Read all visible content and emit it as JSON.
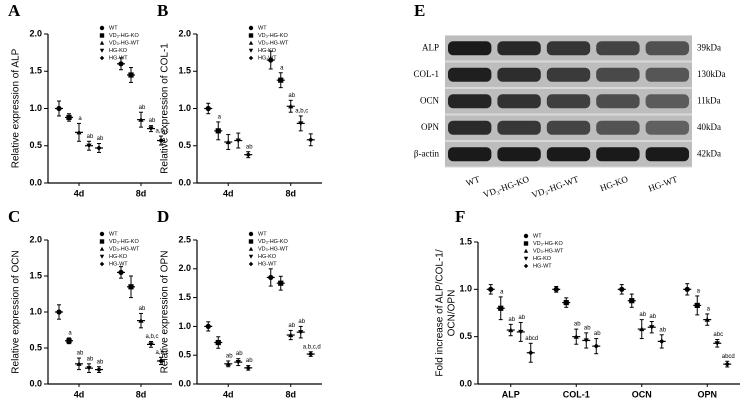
{
  "chart_data": [
    {
      "type": "dot",
      "panel": "A",
      "y_label": "Relative expression of ALP",
      "categories": [
        "4d",
        "8d"
      ],
      "ylim": [
        0,
        2
      ],
      "yticks": [
        {
          "value": 0,
          "label": "0.0"
        },
        {
          "value": 0.5,
          "label": "0.5"
        },
        {
          "value": 1,
          "label": "1.0"
        },
        {
          "value": 1.5,
          "label": "1.5"
        },
        {
          "value": 2,
          "label": "2.0"
        }
      ],
      "series": [
        {
          "name": "WT",
          "marker": "circle",
          "color": "#000000",
          "values": [
            1.0,
            1.6
          ],
          "errors": [
            0.1,
            0.08
          ],
          "labels": [
            null,
            null
          ]
        },
        {
          "name": "VD₃-HG-KO",
          "marker": "square",
          "color": "#000000",
          "values": [
            0.88,
            1.45
          ],
          "errors": [
            0.05,
            0.1
          ],
          "labels": [
            null,
            null
          ]
        },
        {
          "name": "VD₃-HG-WT",
          "marker": "triangle-up",
          "color": "#000000",
          "values": [
            0.68,
            0.85
          ],
          "errors": [
            0.12,
            0.1
          ],
          "labels": [
            "a",
            "ab"
          ]
        },
        {
          "name": "HG-KO",
          "marker": "triangle-down",
          "color": "#000000",
          "values": [
            0.5,
            0.73
          ],
          "errors": [
            0.06,
            0.04
          ],
          "labels": [
            "ab",
            "ab"
          ]
        },
        {
          "name": "HG-WT",
          "marker": "diamond",
          "color": "#000000",
          "values": [
            0.47,
            0.57
          ],
          "errors": [
            0.06,
            0.06
          ],
          "labels": [
            "ab",
            "a,b,c"
          ]
        }
      ]
    },
    {
      "type": "dot",
      "panel": "B",
      "y_label": "Relative expression of COL-1",
      "categories": [
        "4d",
        "8d"
      ],
      "ylim": [
        0,
        2
      ],
      "yticks": [
        {
          "value": 0,
          "label": "0.0"
        },
        {
          "value": 0.5,
          "label": "0.5"
        },
        {
          "value": 1,
          "label": "1.0"
        },
        {
          "value": 1.5,
          "label": "1.5"
        },
        {
          "value": 2,
          "label": "2.0"
        }
      ],
      "series": [
        {
          "name": "WT",
          "marker": "circle",
          "color": "#000000",
          "values": [
            1.0,
            1.65
          ],
          "errors": [
            0.07,
            0.12
          ],
          "labels": [
            null,
            null
          ]
        },
        {
          "name": "VD₃-HG-KO",
          "marker": "square",
          "color": "#000000",
          "values": [
            0.7,
            1.38
          ],
          "errors": [
            0.12,
            0.1
          ],
          "labels": [
            "a",
            "a"
          ]
        },
        {
          "name": "VD₃-HG-WT",
          "marker": "triangle-up",
          "color": "#000000",
          "values": [
            0.55,
            1.03
          ],
          "errors": [
            0.1,
            0.08
          ],
          "labels": [
            null,
            "ab"
          ]
        },
        {
          "name": "HG-KO",
          "marker": "triangle-down",
          "color": "#000000",
          "values": [
            0.57,
            0.8
          ],
          "errors": [
            0.1,
            0.1
          ],
          "labels": [
            null,
            "a,b,c"
          ]
        },
        {
          "name": "HG-WT",
          "marker": "diamond",
          "color": "#000000",
          "values": [
            0.38,
            0.58
          ],
          "errors": [
            0.04,
            0.08
          ],
          "labels": [
            "ab",
            null
          ]
        }
      ]
    },
    {
      "type": "dot",
      "panel": "C",
      "y_label": "Relative expression of OCN",
      "categories": [
        "4d",
        "8d"
      ],
      "ylim": [
        0,
        2
      ],
      "yticks": [
        {
          "value": 0,
          "label": "0.0"
        },
        {
          "value": 0.5,
          "label": "0.5"
        },
        {
          "value": 1,
          "label": "1.0"
        },
        {
          "value": 1.5,
          "label": "1.5"
        },
        {
          "value": 2,
          "label": "2.0"
        }
      ],
      "series": [
        {
          "name": "WT",
          "marker": "circle",
          "color": "#000000",
          "values": [
            1.0,
            1.55
          ],
          "errors": [
            0.1,
            0.08
          ],
          "labels": [
            null,
            null
          ]
        },
        {
          "name": "VD₃-HG-KO",
          "marker": "square",
          "color": "#000000",
          "values": [
            0.6,
            1.35
          ],
          "errors": [
            0.04,
            0.15
          ],
          "labels": [
            "a",
            null
          ]
        },
        {
          "name": "VD₃-HG-WT",
          "marker": "triangle-up",
          "color": "#000000",
          "values": [
            0.28,
            0.88
          ],
          "errors": [
            0.08,
            0.1
          ],
          "labels": [
            "ab",
            "ab"
          ]
        },
        {
          "name": "HG-KO",
          "marker": "triangle-down",
          "color": "#000000",
          "values": [
            0.22,
            0.55
          ],
          "errors": [
            0.06,
            0.04
          ],
          "labels": [
            "ab",
            "a,b,c"
          ]
        },
        {
          "name": "HG-WT",
          "marker": "diamond",
          "color": "#000000",
          "values": [
            0.2,
            0.32
          ],
          "errors": [
            0.04,
            0.05
          ],
          "labels": [
            "ab",
            "a,b,c"
          ]
        }
      ]
    },
    {
      "type": "dot",
      "panel": "D",
      "y_label": "Relative expression of OPN",
      "categories": [
        "4d",
        "8d"
      ],
      "ylim": [
        0,
        2.5
      ],
      "yticks": [
        {
          "value": 0,
          "label": "0.0"
        },
        {
          "value": 0.5,
          "label": "0.5"
        },
        {
          "value": 1,
          "label": "1.0"
        },
        {
          "value": 1.5,
          "label": "1.5"
        },
        {
          "value": 2,
          "label": "2.0"
        },
        {
          "value": 2.5,
          "label": "2.5"
        }
      ],
      "series": [
        {
          "name": "WT",
          "marker": "circle",
          "color": "#000000",
          "values": [
            1.0,
            1.85
          ],
          "errors": [
            0.08,
            0.15
          ],
          "labels": [
            null,
            null
          ]
        },
        {
          "name": "VD₃-HG-KO",
          "marker": "square",
          "color": "#000000",
          "values": [
            0.72,
            1.75
          ],
          "errors": [
            0.1,
            0.12
          ],
          "labels": [
            null,
            null
          ]
        },
        {
          "name": "VD₃-HG-WT",
          "marker": "triangle-up",
          "color": "#000000",
          "values": [
            0.35,
            0.85
          ],
          "errors": [
            0.05,
            0.08
          ],
          "labels": [
            "ab",
            "ab"
          ]
        },
        {
          "name": "HG-KO",
          "marker": "triangle-down",
          "color": "#000000",
          "values": [
            0.38,
            0.9
          ],
          "errors": [
            0.06,
            0.1
          ],
          "labels": [
            "ab",
            "ab"
          ]
        },
        {
          "name": "HG-WT",
          "marker": "diamond",
          "color": "#000000",
          "values": [
            0.28,
            0.52
          ],
          "errors": [
            0.04,
            0.04
          ],
          "labels": [
            "ab",
            "a,b,c,d"
          ]
        }
      ]
    },
    {
      "type": "dot",
      "panel": "F",
      "y_label": [
        "Fold increase of ALP/COL-1/",
        "OCN/OPN"
      ],
      "categories": [
        "ALP",
        "COL-1",
        "OCN",
        "OPN"
      ],
      "ylim": [
        0,
        1.5
      ],
      "yticks": [
        {
          "value": 0,
          "label": "0.0"
        },
        {
          "value": 0.5,
          "label": "0.5"
        },
        {
          "value": 1,
          "label": "1.0"
        },
        {
          "value": 1.5,
          "label": "1.5"
        }
      ],
      "series": [
        {
          "name": "WT",
          "marker": "circle",
          "color": "#000000",
          "values": [
            1.0,
            1.0,
            1.0,
            1.0
          ],
          "errors": [
            0.05,
            0.03,
            0.05,
            0.06
          ],
          "labels": [
            null,
            null,
            null,
            null
          ]
        },
        {
          "name": "VD₃-HG-KO",
          "marker": "square",
          "color": "#000000",
          "values": [
            0.8,
            0.86,
            0.88,
            0.83
          ],
          "errors": [
            0.12,
            0.05,
            0.07,
            0.1
          ],
          "labels": [
            "a",
            null,
            null,
            "a"
          ]
        },
        {
          "name": "VD₃-HG-WT",
          "marker": "triangle-up",
          "color": "#000000",
          "values": [
            0.57,
            0.5,
            0.58,
            0.68
          ],
          "errors": [
            0.06,
            0.08,
            0.1,
            0.06
          ],
          "labels": [
            "ab",
            "ab",
            "ab",
            "a"
          ]
        },
        {
          "name": "HG-KO",
          "marker": "triangle-down",
          "color": "#000000",
          "values": [
            0.55,
            0.46,
            0.6,
            0.43
          ],
          "errors": [
            0.1,
            0.08,
            0.06,
            0.04
          ],
          "labels": [
            "ab",
            "ab",
            "ab",
            "abc"
          ]
        },
        {
          "name": "HG-WT",
          "marker": "diamond",
          "color": "#000000",
          "values": [
            0.33,
            0.4,
            0.45,
            0.21
          ],
          "errors": [
            0.1,
            0.08,
            0.07,
            0.03
          ],
          "labels": [
            "abcd",
            "ab",
            "ab",
            "abcd"
          ]
        }
      ]
    }
  ],
  "blot": {
    "panel": "E",
    "proteins": [
      "ALP",
      "COL-1",
      "OCN",
      "OPN",
      "β-actin"
    ],
    "sizes": [
      "39kDa",
      "130kDa",
      "11kDa",
      "40kDa",
      "42kDa"
    ],
    "lanes": [
      "WT",
      "VD₃-HG-KO",
      "VD₃-HG-WT",
      "HG-KO",
      "HG-WT"
    ]
  }
}
